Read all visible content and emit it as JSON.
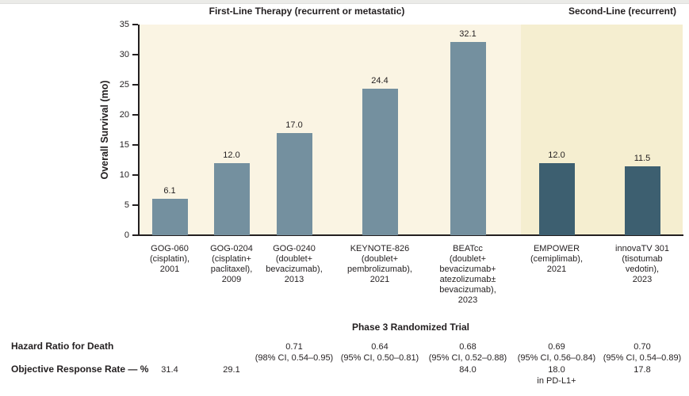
{
  "chart_data": {
    "type": "bar",
    "ylabel": "Overall Survival (mo)",
    "xlabel": "Phase 3 Randomized Trial",
    "ylim": [
      0,
      35
    ],
    "yticks": [
      0,
      5,
      10,
      15,
      20,
      25,
      30,
      35
    ],
    "grid": false,
    "legend": "none",
    "colors": {
      "first_line_bar": "#74909f",
      "second_line_bar": "#3d5f70",
      "first_line_background": "#faf4e3",
      "second_line_background": "#f5eed0",
      "text": "#231f20",
      "axis": "#231f20"
    },
    "sections": [
      {
        "title": "First-Line Therapy (recurrent or metastatic)",
        "trials": [
          {
            "name": "GOG-060",
            "label_lines": [
              "GOG-060",
              "(cisplatin),",
              "2001"
            ],
            "overall_survival_mo": 6.1,
            "value_label": "6.1",
            "hazard_ratio_lines": [],
            "orr_lines": [
              "31.4"
            ]
          },
          {
            "name": "GOG-0204",
            "label_lines": [
              "GOG-0204",
              "(cisplatin+",
              "paclitaxel),",
              "2009"
            ],
            "overall_survival_mo": 12.0,
            "value_label": "12.0",
            "hazard_ratio_lines": [],
            "orr_lines": [
              "29.1"
            ]
          },
          {
            "name": "GOG-0240",
            "label_lines": [
              "GOG-0240",
              "(doublet+",
              "bevacizumab),",
              "2013"
            ],
            "overall_survival_mo": 17.0,
            "value_label": "17.0",
            "hazard_ratio_lines": [
              "0.71",
              "(98% CI, 0.54–0.95)"
            ],
            "orr_lines": []
          },
          {
            "name": "KEYNOTE-826",
            "label_lines": [
              "KEYNOTE-826",
              "(doublet+",
              "pembrolizumab),",
              "2021"
            ],
            "overall_survival_mo": 24.4,
            "value_label": "24.4",
            "hazard_ratio_lines": [
              "0.64",
              "(95% CI, 0.50–0.81)"
            ],
            "orr_lines": []
          },
          {
            "name": "BEATcc",
            "label_lines": [
              "BEATcc",
              "(doublet+",
              "bevacizumab+",
              "atezolizumab±",
              "bevacizumab),",
              "2023"
            ],
            "overall_survival_mo": 32.1,
            "value_label": "32.1",
            "hazard_ratio_lines": [
              "0.68",
              "(95% CI, 0.52–0.88)"
            ],
            "orr_lines": [
              "84.0"
            ]
          }
        ]
      },
      {
        "title": "Second-Line (recurrent)",
        "trials": [
          {
            "name": "EMPOWER",
            "label_lines": [
              "EMPOWER",
              "(cemiplimab),",
              "2021"
            ],
            "overall_survival_mo": 12.0,
            "value_label": "12.0",
            "hazard_ratio_lines": [
              "0.69",
              "(95% CI, 0.56–0.84)"
            ],
            "orr_lines": [
              "18.0",
              "in PD-L1+"
            ]
          },
          {
            "name": "innovaTV 301",
            "label_lines": [
              "innovaTV 301",
              "(tisotumab",
              "vedotin),",
              "2023"
            ],
            "overall_survival_mo": 11.5,
            "value_label": "11.5",
            "hazard_ratio_lines": [
              "0.70",
              "(95% CI, 0.54–0.89)"
            ],
            "orr_lines": [
              "17.8"
            ]
          }
        ]
      }
    ],
    "rows": {
      "hazard_ratio_label": "Hazard Ratio for Death",
      "orr_label": "Objective Response Rate — %"
    }
  }
}
